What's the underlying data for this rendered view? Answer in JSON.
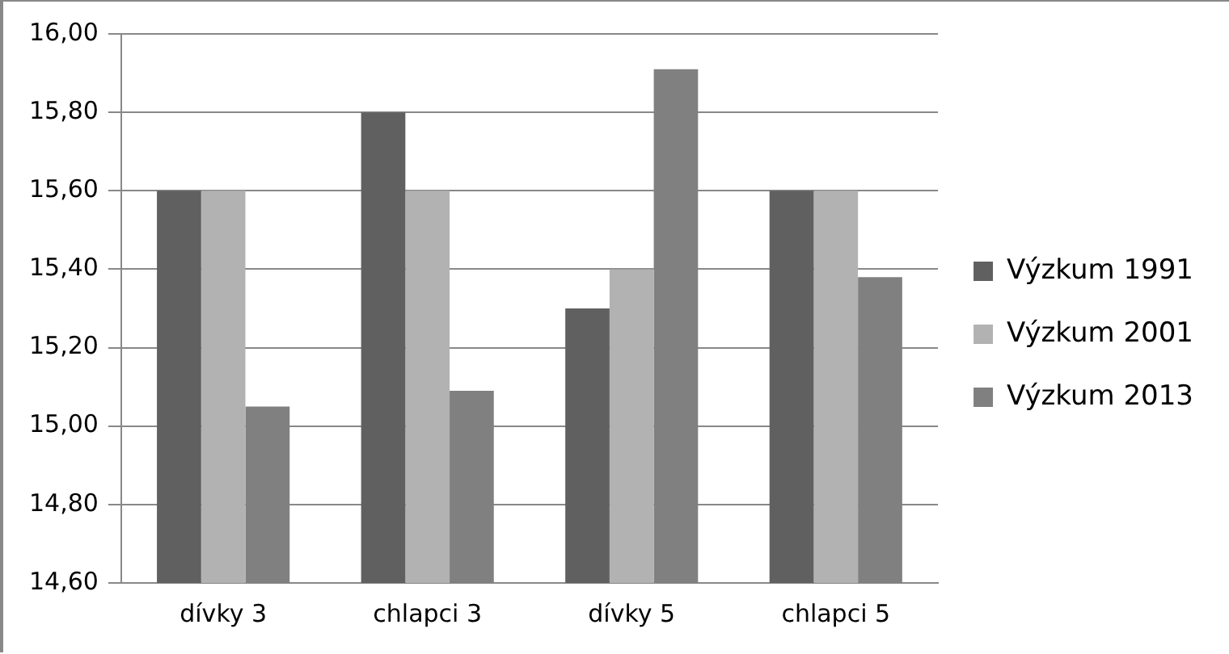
{
  "chart_data": {
    "type": "bar",
    "categories": [
      "dívky 3",
      "chlapci 3",
      "dívky 5",
      "chlapci 5"
    ],
    "series": [
      {
        "name": "Výzkum 1991",
        "color": "#606060",
        "values": [
          15.6,
          15.8,
          15.3,
          15.6
        ]
      },
      {
        "name": "Výzkum 2001",
        "color": "#b2b2b2",
        "values": [
          15.6,
          15.6,
          15.4,
          15.6
        ]
      },
      {
        "name": "Výzkum 2013",
        "color": "#808080",
        "values": [
          15.05,
          15.09,
          15.91,
          15.38
        ]
      }
    ],
    "ylim": [
      14.6,
      16.0
    ],
    "yticks": [
      {
        "value": 14.6,
        "label": "14,60"
      },
      {
        "value": 14.8,
        "label": "14,80"
      },
      {
        "value": 15.0,
        "label": "15,00"
      },
      {
        "value": 15.2,
        "label": "15,20"
      },
      {
        "value": 15.4,
        "label": "15,40"
      },
      {
        "value": 15.6,
        "label": "15,60"
      },
      {
        "value": 15.8,
        "label": "15,80"
      },
      {
        "value": 16.0,
        "label": "16,00"
      }
    ],
    "grid": "y",
    "legend": "right"
  }
}
